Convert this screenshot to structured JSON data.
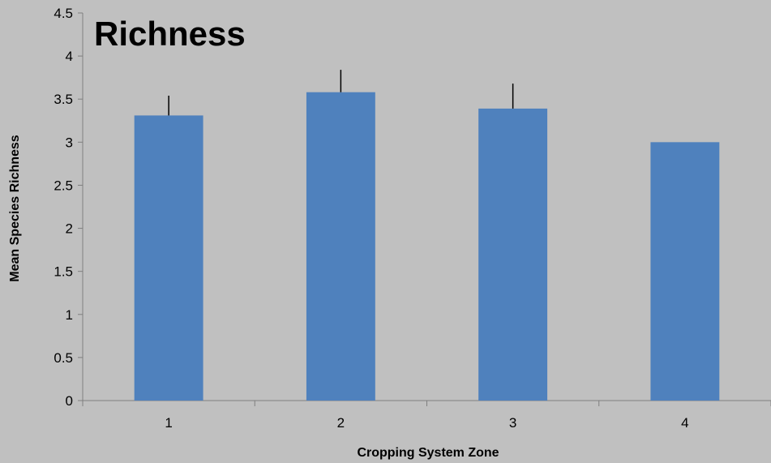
{
  "chart_data": {
    "type": "bar",
    "title": "Richness",
    "xlabel": "Cropping System Zone",
    "ylabel": "Mean Species Richness",
    "categories": [
      "1",
      "2",
      "3",
      "4"
    ],
    "series": [
      {
        "values": [
          3.31,
          3.58,
          3.39,
          3.0
        ],
        "error_plus": [
          0.23,
          0.26,
          0.29,
          0.0
        ]
      }
    ],
    "ylim": [
      0,
      4.5
    ],
    "yticks": [
      "0",
      "0.5",
      "1",
      "1.5",
      "2",
      "2.5",
      "3",
      "3.5",
      "4",
      "4.5"
    ],
    "grid": false,
    "legend": "none",
    "colors": {
      "bar": "#4f81bd",
      "background": "#c0c0c0",
      "axis": "#7f7f7f",
      "error_bar": "#000000"
    }
  }
}
